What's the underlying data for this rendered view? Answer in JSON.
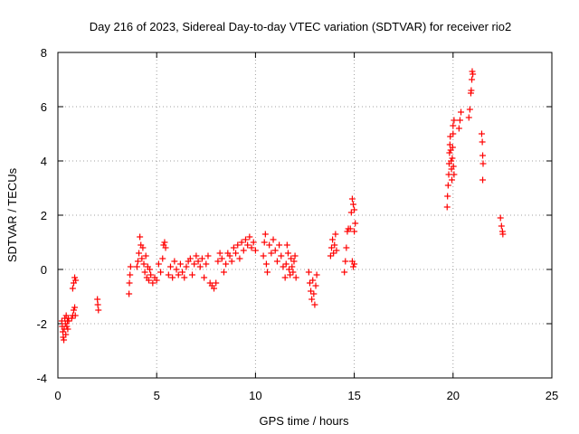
{
  "chart_data": {
    "type": "scatter",
    "title": "Day 216 of 2023, Sidereal Day-to-day VTEC variation (SDTVAR) for receiver rio2",
    "xlabel": "GPS time / hours",
    "ylabel": "SDTVAR / TECUs",
    "xlim": [
      0,
      25
    ],
    "ylim": [
      -4,
      8
    ],
    "xticks": [
      "0",
      "5",
      "10",
      "15",
      "20",
      "25"
    ],
    "yticks": [
      "-4",
      "-2",
      "0",
      "2",
      "4",
      "6",
      "8"
    ],
    "grid": true,
    "marker": "+",
    "series_color": "#ff0000",
    "series": [
      {
        "name": "SDTVAR",
        "points": [
          [
            0.2,
            -1.9
          ],
          [
            0.22,
            -2.1
          ],
          [
            0.25,
            -2.3
          ],
          [
            0.27,
            -2.5
          ],
          [
            0.3,
            -2.6
          ],
          [
            0.32,
            -2.2
          ],
          [
            0.35,
            -1.8
          ],
          [
            0.38,
            -2.0
          ],
          [
            0.4,
            -2.4
          ],
          [
            0.42,
            -1.7
          ],
          [
            0.45,
            -2.1
          ],
          [
            0.48,
            -1.9
          ],
          [
            0.5,
            -2.2
          ],
          [
            0.52,
            -1.8
          ],
          [
            0.55,
            -1.9
          ],
          [
            0.7,
            -1.8
          ],
          [
            0.75,
            -1.7
          ],
          [
            0.8,
            -1.5
          ],
          [
            0.85,
            -1.4
          ],
          [
            0.88,
            -1.7
          ],
          [
            0.75,
            -0.7
          ],
          [
            0.8,
            -0.5
          ],
          [
            0.85,
            -0.3
          ],
          [
            0.9,
            -0.4
          ],
          [
            2.0,
            -1.1
          ],
          [
            2.02,
            -1.3
          ],
          [
            2.05,
            -1.5
          ],
          [
            3.6,
            -0.9
          ],
          [
            3.62,
            -0.5
          ],
          [
            3.65,
            -0.2
          ],
          [
            3.68,
            0.1
          ],
          [
            4.0,
            0.1
          ],
          [
            4.05,
            0.3
          ],
          [
            4.1,
            0.6
          ],
          [
            4.15,
            1.2
          ],
          [
            4.2,
            0.9
          ],
          [
            4.25,
            0.4
          ],
          [
            4.3,
            0.8
          ],
          [
            4.35,
            0.2
          ],
          [
            4.4,
            -0.1
          ],
          [
            4.45,
            0.5
          ],
          [
            4.5,
            -0.3
          ],
          [
            4.55,
            0.1
          ],
          [
            4.6,
            -0.4
          ],
          [
            4.65,
            0.0
          ],
          [
            4.7,
            -0.2
          ],
          [
            4.8,
            -0.5
          ],
          [
            4.9,
            -0.3
          ],
          [
            5.0,
            -0.4
          ],
          [
            5.1,
            0.2
          ],
          [
            5.2,
            -0.1
          ],
          [
            5.3,
            0.4
          ],
          [
            5.35,
            0.9
          ],
          [
            5.4,
            1.0
          ],
          [
            5.45,
            0.8
          ],
          [
            5.6,
            -0.2
          ],
          [
            5.7,
            0.1
          ],
          [
            5.8,
            -0.3
          ],
          [
            5.9,
            0.3
          ],
          [
            6.0,
            0.0
          ],
          [
            6.1,
            -0.2
          ],
          [
            6.2,
            0.2
          ],
          [
            6.3,
            -0.1
          ],
          [
            6.4,
            -0.3
          ],
          [
            6.5,
            0.1
          ],
          [
            6.6,
            0.3
          ],
          [
            6.7,
            0.4
          ],
          [
            6.8,
            -0.2
          ],
          [
            6.9,
            0.2
          ],
          [
            7.0,
            0.5
          ],
          [
            7.1,
            0.3
          ],
          [
            7.2,
            0.1
          ],
          [
            7.3,
            0.4
          ],
          [
            7.4,
            -0.3
          ],
          [
            7.5,
            0.2
          ],
          [
            7.6,
            0.5
          ],
          [
            7.7,
            -0.5
          ],
          [
            7.8,
            -0.6
          ],
          [
            7.9,
            -0.7
          ],
          [
            8.0,
            -0.5
          ],
          [
            8.1,
            0.3
          ],
          [
            8.2,
            0.6
          ],
          [
            8.3,
            0.4
          ],
          [
            8.4,
            -0.1
          ],
          [
            8.5,
            0.2
          ],
          [
            8.6,
            0.6
          ],
          [
            8.7,
            0.5
          ],
          [
            8.8,
            0.3
          ],
          [
            8.9,
            0.8
          ],
          [
            9.0,
            0.6
          ],
          [
            9.1,
            0.9
          ],
          [
            9.2,
            0.4
          ],
          [
            9.3,
            1.0
          ],
          [
            9.4,
            0.7
          ],
          [
            9.5,
            1.1
          ],
          [
            9.6,
            0.9
          ],
          [
            9.7,
            1.2
          ],
          [
            9.8,
            0.8
          ],
          [
            9.9,
            1.0
          ],
          [
            10.0,
            0.7
          ],
          [
            10.4,
            0.5
          ],
          [
            10.45,
            1.0
          ],
          [
            10.5,
            1.3
          ],
          [
            10.55,
            0.2
          ],
          [
            10.6,
            -0.1
          ],
          [
            10.7,
            0.9
          ],
          [
            10.8,
            0.6
          ],
          [
            10.9,
            1.1
          ],
          [
            11.0,
            0.7
          ],
          [
            11.1,
            0.3
          ],
          [
            11.2,
            0.9
          ],
          [
            11.3,
            0.5
          ],
          [
            11.4,
            0.1
          ],
          [
            11.5,
            -0.3
          ],
          [
            11.55,
            0.2
          ],
          [
            11.6,
            0.9
          ],
          [
            11.65,
            0.6
          ],
          [
            11.7,
            0.0
          ],
          [
            11.75,
            -0.2
          ],
          [
            11.8,
            0.4
          ],
          [
            11.85,
            0.1
          ],
          [
            11.9,
            -0.1
          ],
          [
            11.95,
            0.3
          ],
          [
            12.0,
            0.5
          ],
          [
            12.05,
            -0.3
          ],
          [
            12.7,
            -0.1
          ],
          [
            12.75,
            -0.5
          ],
          [
            12.8,
            -0.8
          ],
          [
            12.85,
            -1.1
          ],
          [
            12.9,
            -0.4
          ],
          [
            12.95,
            -0.9
          ],
          [
            13.0,
            -1.3
          ],
          [
            13.05,
            -0.6
          ],
          [
            13.1,
            -0.2
          ],
          [
            13.8,
            0.5
          ],
          [
            13.85,
            0.8
          ],
          [
            13.9,
            1.1
          ],
          [
            13.95,
            0.6
          ],
          [
            14.0,
            0.9
          ],
          [
            14.05,
            1.3
          ],
          [
            14.1,
            0.7
          ],
          [
            14.5,
            -0.1
          ],
          [
            14.55,
            0.3
          ],
          [
            14.6,
            0.8
          ],
          [
            14.65,
            1.4
          ],
          [
            14.7,
            1.5
          ],
          [
            14.8,
            1.5
          ],
          [
            14.85,
            2.1
          ],
          [
            14.9,
            2.6
          ],
          [
            14.95,
            2.4
          ],
          [
            15.0,
            2.2
          ],
          [
            15.05,
            1.7
          ],
          [
            15.0,
            1.4
          ],
          [
            14.9,
            0.3
          ],
          [
            14.95,
            0.1
          ],
          [
            15.0,
            0.2
          ],
          [
            19.7,
            2.3
          ],
          [
            19.72,
            2.7
          ],
          [
            19.75,
            3.1
          ],
          [
            19.78,
            3.5
          ],
          [
            19.8,
            3.9
          ],
          [
            19.82,
            4.3
          ],
          [
            19.84,
            4.6
          ],
          [
            19.86,
            4.9
          ],
          [
            19.88,
            4.4
          ],
          [
            19.9,
            4.0
          ],
          [
            19.92,
            3.7
          ],
          [
            19.94,
            3.3
          ],
          [
            19.96,
            4.1
          ],
          [
            19.98,
            4.5
          ],
          [
            20.0,
            5.0
          ],
          [
            20.02,
            3.8
          ],
          [
            20.05,
            3.5
          ],
          [
            20.0,
            5.3
          ],
          [
            20.05,
            5.5
          ],
          [
            20.3,
            5.2
          ],
          [
            20.35,
            5.5
          ],
          [
            20.4,
            5.8
          ],
          [
            20.8,
            5.6
          ],
          [
            20.85,
            5.9
          ],
          [
            20.9,
            6.5
          ],
          [
            20.92,
            6.6
          ],
          [
            20.95,
            7.0
          ],
          [
            20.97,
            7.3
          ],
          [
            21.0,
            7.2
          ],
          [
            21.45,
            5.0
          ],
          [
            21.48,
            4.7
          ],
          [
            21.5,
            4.2
          ],
          [
            21.52,
            3.9
          ],
          [
            21.5,
            3.3
          ],
          [
            22.4,
            1.9
          ],
          [
            22.45,
            1.6
          ],
          [
            22.5,
            1.4
          ],
          [
            22.52,
            1.3
          ]
        ]
      }
    ]
  }
}
